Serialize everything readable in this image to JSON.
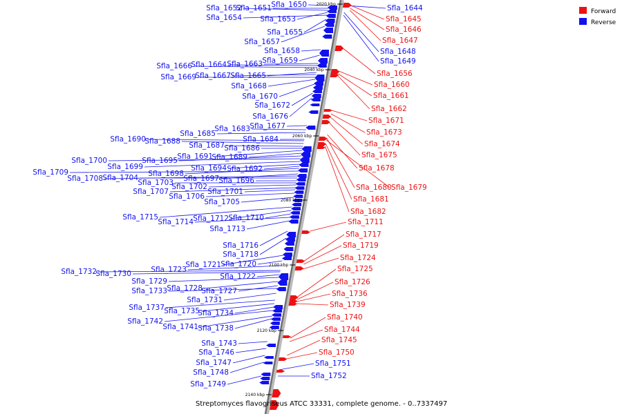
{
  "caption": "Streptomyces flavogriseus ATCC 33331, complete genome. - 0..7337497",
  "legend": [
    {
      "label": "Forward",
      "color": "#ee1111"
    },
    {
      "label": "Reverse",
      "color": "#1111ee"
    }
  ],
  "ticks": [
    "2020 kbp",
    "2040 kbp",
    "2060 kbp",
    "2080 kbp",
    "2100 kbp",
    "2120 kbp",
    "2140 kbp"
  ],
  "colors": {
    "forward": "#ee1111",
    "reverse": "#1111ee",
    "axis": "#808080"
  },
  "reverse_genes": [
    "Sfla_1650",
    "Sfla_1651",
    "Sfla_1652",
    "Sfla_1653",
    "Sfla_1654",
    "Sfla_1655",
    "Sfla_1657",
    "Sfla_1658",
    "Sfla_1659",
    "Sfla_1663",
    "Sfla_1664",
    "Sfla_1666",
    "Sfla_1665",
    "Sfla_1667",
    "Sfla_1669",
    "Sfla_1668",
    "Sfla_1670",
    "Sfla_1672",
    "Sfla_1676",
    "Sfla_1677",
    "Sfla_1683",
    "Sfla_1685",
    "Sfla_1684",
    "Sfla_1690",
    "Sfla_1688",
    "Sfla_1687",
    "Sfla_1686",
    "Sfla_1691",
    "Sfla_1689",
    "Sfla_1695",
    "Sfla_1700",
    "Sfla_1699",
    "Sfla_1694",
    "Sfla_1692",
    "Sfla_1698",
    "Sfla_1709",
    "Sfla_1697",
    "Sfla_1708",
    "Sfla_1704",
    "Sfla_1696",
    "Sfla_1703",
    "Sfla_1702",
    "Sfla_1707",
    "Sfla_1701",
    "Sfla_1706",
    "Sfla_1705",
    "Sfla_1715",
    "Sfla_1712",
    "Sfla_1710",
    "Sfla_1714",
    "Sfla_1713",
    "Sfla_1716",
    "Sfla_1718",
    "Sfla_1721",
    "Sfla_1720",
    "Sfla_1723",
    "Sfla_1732",
    "Sfla_1730",
    "Sfla_1722",
    "Sfla_1729",
    "Sfla_1728",
    "Sfla_1727",
    "Sfla_1733",
    "Sfla_1731",
    "Sfla_1737",
    "Sfla_1735",
    "Sfla_1734",
    "Sfla_1742",
    "Sfla_1741",
    "Sfla_1738",
    "Sfla_1743",
    "Sfla_1746",
    "Sfla_1747",
    "Sfla_1748",
    "Sfla_1749",
    "Sfla_1644",
    "Sfla_1648",
    "Sfla_1649",
    "Sfla_1751",
    "Sfla_1752"
  ],
  "forward_genes": [
    "Sfla_1645",
    "Sfla_1646",
    "Sfla_1647",
    "Sfla_1656",
    "Sfla_1660",
    "Sfla_1661",
    "Sfla_1662",
    "Sfla_1671",
    "Sfla_1673",
    "Sfla_1674",
    "Sfla_1675",
    "Sfla_1678",
    "Sfla_1680",
    "Sfla_1679",
    "Sfla_1681",
    "Sfla_1682",
    "Sfla_1711",
    "Sfla_1717",
    "Sfla_1719",
    "Sfla_1724",
    "Sfla_1725",
    "Sfla_1726",
    "Sfla_1736",
    "Sfla_1739",
    "Sfla_1740",
    "Sfla_1744",
    "Sfla_1745",
    "Sfla_1750"
  ]
}
